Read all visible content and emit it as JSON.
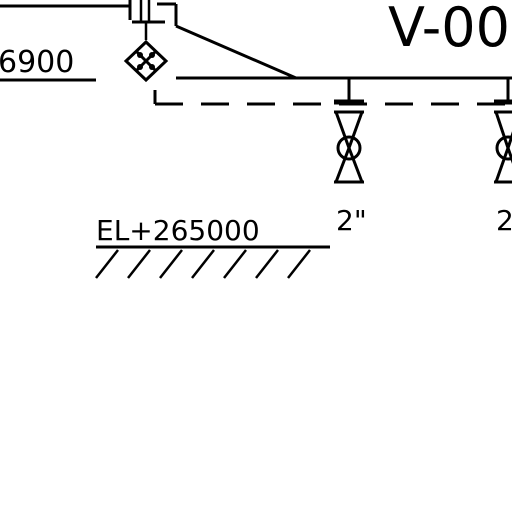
{
  "drawing": {
    "tag": "V-00",
    "labels": {
      "elevation_upper": "6900",
      "elevation_ground": "EL+265000",
      "valve_size_1": "2\"",
      "valve_size_2": "2"
    },
    "icons": {
      "diamond_valve": "diamond-cross-valve-icon",
      "gate_valve": "gate-valve-icon",
      "ground": "ground-hatch-icon"
    },
    "colors": {
      "ink": "#000000",
      "paper": "#ffffff"
    }
  }
}
